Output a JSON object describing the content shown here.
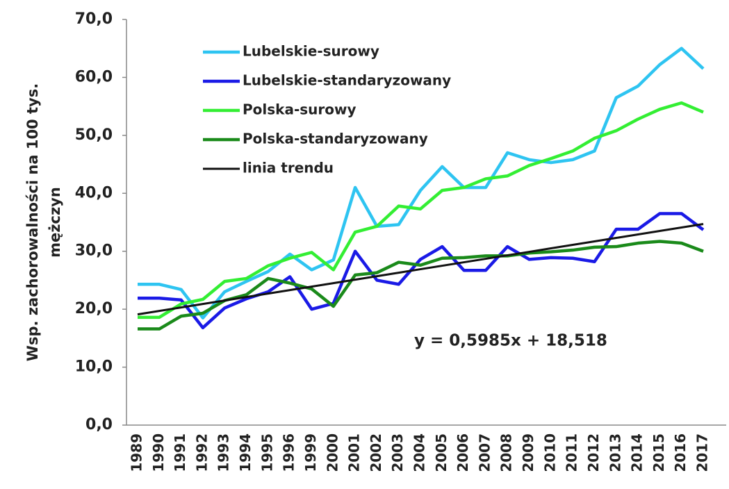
{
  "chart_data": {
    "type": "line",
    "y_axis_label": [
      "Wsp. zachorowalności na 100 tys.",
      "mężczyn"
    ],
    "annotation": "y = 0,5985x + 18,518",
    "categories": [
      "1989",
      "1990",
      "1991",
      "1992",
      "1993",
      "1994",
      "1995",
      "1996",
      "1999",
      "2000",
      "2001",
      "2002",
      "2003",
      "2004",
      "2005",
      "2006",
      "2007",
      "2008",
      "2009",
      "2010",
      "2011",
      "2012",
      "2013",
      "2014",
      "2015",
      "2016",
      "2017"
    ],
    "series": [
      {
        "name": "Lubelskie-surowy",
        "color": "#2ec4f1",
        "values": [
          24.3,
          24.3,
          23.4,
          18.5,
          23,
          24.8,
          26.5,
          29.5,
          26.8,
          28.5,
          41,
          34.3,
          34.6,
          40.5,
          44.6,
          41,
          41,
          47,
          45.8,
          45.3,
          45.8,
          47.3,
          56.5,
          58.5,
          62.2,
          65,
          61.5
        ]
      },
      {
        "name": "Lubelskie-standaryzowany",
        "color": "#1a1ae6",
        "values": [
          21.9,
          21.9,
          21.6,
          16.8,
          20.2,
          21.8,
          23,
          25.6,
          20,
          21,
          30,
          25,
          24.3,
          28.6,
          30.8,
          26.7,
          26.7,
          30.8,
          28.6,
          28.9,
          28.8,
          28.2,
          33.8,
          33.8,
          36.5,
          36.5,
          33.7
        ]
      },
      {
        "name": "Polska-surowy",
        "color": "#33ee33",
        "values": [
          18.6,
          18.6,
          20.9,
          21.7,
          24.8,
          25.3,
          27.5,
          28.8,
          29.8,
          26.8,
          33.3,
          34.3,
          37.8,
          37.3,
          40.5,
          41,
          42.5,
          43,
          44.8,
          46,
          47.3,
          49.5,
          50.8,
          52.8,
          54.5,
          55.6,
          54
        ]
      },
      {
        "name": "Polska-standaryzowany",
        "color": "#1a8a1a",
        "values": [
          16.6,
          16.6,
          18.8,
          19.3,
          21.5,
          22.5,
          25.3,
          24.5,
          23.5,
          20.5,
          25.9,
          26.3,
          28.1,
          27.6,
          28.8,
          28.9,
          29.2,
          29.2,
          29.7,
          29.9,
          30.2,
          30.7,
          30.8,
          31.4,
          31.7,
          31.4,
          30
        ]
      },
      {
        "name": "linia trendu",
        "color": "#111111",
        "values": [
          19.1,
          19.7,
          20.3,
          20.9,
          21.5,
          22.1,
          22.7,
          23.3,
          23.9,
          24.5,
          25.1,
          25.7,
          26.3,
          26.9,
          27.5,
          28.1,
          28.7,
          29.3,
          29.9,
          30.5,
          31.1,
          31.7,
          32.3,
          32.9,
          33.5,
          34.1,
          34.7
        ]
      }
    ],
    "ylim": [
      0,
      70
    ],
    "yticks": [
      {
        "value": 0,
        "label": "0,0"
      },
      {
        "value": 10,
        "label": "10,0"
      },
      {
        "value": 20,
        "label": "20,0"
      },
      {
        "value": 30,
        "label": "30,0"
      },
      {
        "value": 40,
        "label": "40,0"
      },
      {
        "value": 50,
        "label": "50,0"
      },
      {
        "value": 60,
        "label": "60,0"
      },
      {
        "value": 70,
        "label": "70,0"
      }
    ],
    "grid": false
  }
}
